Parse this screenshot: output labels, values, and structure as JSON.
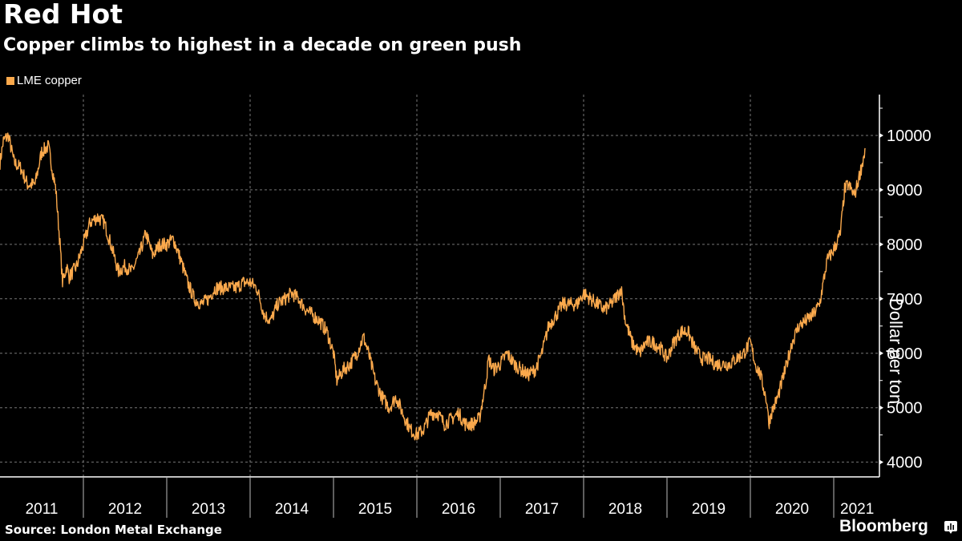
{
  "header": {
    "title": "Red Hot",
    "subtitle": "Copper climbs to highest in a decade on green push"
  },
  "footer": {
    "source": "Source: London Metal Exchange",
    "brand": "Bloomberg",
    "brand_icon": "bar-chart-icon"
  },
  "colors": {
    "series": "#FBA94C",
    "background": "#000000",
    "text": "#FFFFFF",
    "grid": "#777777"
  },
  "chart_data": {
    "type": "line",
    "title": "Red Hot",
    "subtitle": "Copper climbs to highest in a decade on green push",
    "xlabel": "",
    "ylabel": "Dollar per ton",
    "legend": {
      "entries": [
        "LME copper"
      ],
      "placement": "top-left"
    },
    "ylim": [
      3730,
      10750
    ],
    "yticks": [
      4000,
      5000,
      6000,
      7000,
      8000,
      9000,
      10000
    ],
    "ytick_labels": [
      "4000",
      "5000",
      "6000",
      "7000",
      "8000",
      "9000",
      "10000"
    ],
    "xlim": [
      2011.0,
      2021.42
    ],
    "xtick_labels": [
      "2011",
      "2012",
      "2013",
      "2014",
      "2015",
      "2016",
      "2017",
      "2018",
      "2019",
      "2020",
      "2021"
    ],
    "grid": true,
    "y_axis_side": "right",
    "series": [
      {
        "name": "LME copper",
        "x": [
          2011.0,
          2011.04,
          2011.1,
          2011.17,
          2011.25,
          2011.33,
          2011.42,
          2011.5,
          2011.58,
          2011.67,
          2011.72,
          2011.75,
          2011.8,
          2011.83,
          2011.92,
          2012.0,
          2012.08,
          2012.17,
          2012.25,
          2012.33,
          2012.42,
          2012.5,
          2012.58,
          2012.67,
          2012.75,
          2012.83,
          2012.92,
          2013.0,
          2013.08,
          2013.17,
          2013.25,
          2013.33,
          2013.42,
          2013.5,
          2013.58,
          2013.67,
          2013.75,
          2013.83,
          2013.92,
          2014.0,
          2014.08,
          2014.17,
          2014.25,
          2014.33,
          2014.42,
          2014.5,
          2014.58,
          2014.67,
          2014.75,
          2014.83,
          2014.92,
          2015.0,
          2015.04,
          2015.12,
          2015.2,
          2015.28,
          2015.36,
          2015.42,
          2015.5,
          2015.58,
          2015.67,
          2015.75,
          2015.83,
          2015.92,
          2016.0,
          2016.08,
          2016.17,
          2016.25,
          2016.33,
          2016.42,
          2016.5,
          2016.58,
          2016.67,
          2016.75,
          2016.83,
          2016.86,
          2016.92,
          2017.0,
          2017.08,
          2017.17,
          2017.25,
          2017.33,
          2017.42,
          2017.5,
          2017.58,
          2017.67,
          2017.75,
          2017.83,
          2017.92,
          2018.0,
          2018.08,
          2018.17,
          2018.25,
          2018.33,
          2018.42,
          2018.45,
          2018.5,
          2018.58,
          2018.67,
          2018.75,
          2018.83,
          2018.92,
          2019.0,
          2019.08,
          2019.17,
          2019.25,
          2019.33,
          2019.42,
          2019.5,
          2019.58,
          2019.67,
          2019.75,
          2019.83,
          2019.92,
          2020.0,
          2020.06,
          2020.12,
          2020.2,
          2020.22,
          2020.25,
          2020.33,
          2020.42,
          2020.5,
          2020.58,
          2020.67,
          2020.75,
          2020.83,
          2020.92,
          2021.0,
          2021.08,
          2021.13,
          2021.17,
          2021.25,
          2021.33,
          2021.38
        ],
        "y": [
          9500,
          9900,
          10000,
          9500,
          9400,
          9100,
          9100,
          9700,
          9800,
          9000,
          8000,
          7300,
          7600,
          7400,
          7600,
          8000,
          8400,
          8500,
          8400,
          8000,
          7500,
          7600,
          7500,
          7800,
          8200,
          7800,
          8000,
          8000,
          8100,
          7700,
          7300,
          7000,
          6900,
          7000,
          7200,
          7200,
          7200,
          7200,
          7300,
          7300,
          7200,
          6700,
          6600,
          6900,
          7000,
          7100,
          7000,
          6800,
          6700,
          6600,
          6400,
          6000,
          5500,
          5700,
          5800,
          6000,
          6300,
          6000,
          5500,
          5200,
          5000,
          5200,
          4900,
          4600,
          4500,
          4600,
          4900,
          4900,
          4700,
          4800,
          4900,
          4700,
          4700,
          4800,
          5500,
          5900,
          5700,
          5800,
          6000,
          5800,
          5700,
          5600,
          5700,
          6000,
          6500,
          6700,
          6900,
          6900,
          6900,
          7100,
          7000,
          6900,
          6800,
          6900,
          7100,
          7200,
          6600,
          6200,
          6000,
          6200,
          6200,
          6100,
          5900,
          6200,
          6400,
          6400,
          6100,
          5900,
          5900,
          5800,
          5800,
          5800,
          5900,
          6000,
          6200,
          5800,
          5600,
          5100,
          4700,
          4900,
          5200,
          5700,
          6200,
          6500,
          6600,
          6700,
          6900,
          7700,
          7900,
          8200,
          9000,
          9100,
          8900,
          9400,
          9750
        ]
      }
    ]
  }
}
